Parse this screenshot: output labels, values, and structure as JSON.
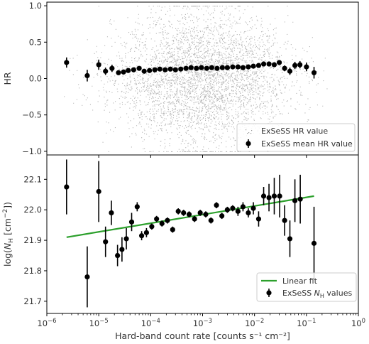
{
  "chart_data": [
    {
      "type": "scatter",
      "panel": "top",
      "xlabel": "",
      "ylabel": "HR",
      "xscale": "log",
      "xlim": [
        1e-06,
        1
      ],
      "ylim": [
        -1.05,
        1.05
      ],
      "yticks": [
        1.0,
        0.5,
        0.0,
        -0.5,
        -1.0
      ],
      "ytick_labels": [
        "1.0",
        "0.5",
        "0.0",
        "−0.5",
        "−1.0"
      ],
      "grid": false,
      "legend_position": "lower-right",
      "series": [
        {
          "name": "ExSeSS HR value",
          "kind": "cloud",
          "color": "#999999",
          "center_log10_x": -3.0,
          "center_hr": 0.0
        },
        {
          "name": "ExSeSS mean HR value",
          "kind": "errorbar",
          "color": "#000000",
          "x": [
            2.4e-06,
            6e-06,
            1e-05,
            1.35e-05,
            1.8e-05,
            2.4e-05,
            3e-05,
            3.7e-05,
            4.7e-05,
            6e-05,
            7.5e-05,
            9.5e-05,
            0.00012,
            0.00015,
            0.00019,
            0.00024,
            0.0003,
            0.00038,
            0.00048,
            0.0006,
            0.00076,
            0.00095,
            0.0012,
            0.0015,
            0.0019,
            0.0024,
            0.003,
            0.0038,
            0.0048,
            0.006,
            0.0076,
            0.0095,
            0.012,
            0.015,
            0.019,
            0.024,
            0.03,
            0.038,
            0.048,
            0.06,
            0.075,
            0.1,
            0.14
          ],
          "y": [
            0.22,
            0.04,
            0.19,
            0.1,
            0.14,
            0.08,
            0.09,
            0.11,
            0.12,
            0.14,
            0.1,
            0.11,
            0.12,
            0.13,
            0.12,
            0.13,
            0.12,
            0.13,
            0.14,
            0.15,
            0.14,
            0.15,
            0.14,
            0.15,
            0.14,
            0.15,
            0.15,
            0.16,
            0.16,
            0.15,
            0.16,
            0.17,
            0.18,
            0.2,
            0.2,
            0.19,
            0.22,
            0.14,
            0.1,
            0.18,
            0.19,
            0.16,
            0.08
          ],
          "yerr": [
            0.07,
            0.08,
            0.07,
            0.05,
            0.05,
            0.03,
            0.03,
            0.02,
            0.02,
            0.02,
            0.02,
            0.02,
            0.02,
            0.02,
            0.02,
            0.02,
            0.02,
            0.02,
            0.02,
            0.02,
            0.02,
            0.02,
            0.02,
            0.02,
            0.02,
            0.02,
            0.02,
            0.02,
            0.02,
            0.02,
            0.02,
            0.02,
            0.02,
            0.02,
            0.03,
            0.03,
            0.03,
            0.04,
            0.05,
            0.05,
            0.05,
            0.06,
            0.08
          ]
        }
      ]
    },
    {
      "type": "scatter",
      "panel": "bottom",
      "xlabel": "Hard-band count rate [counts s⁻¹ cm⁻²]",
      "ylabel_parts": [
        "log(",
        "N",
        "H",
        " [cm",
        "−2",
        "])"
      ],
      "xscale": "log",
      "xlim": [
        1e-06,
        1
      ],
      "ylim": [
        21.66,
        22.18
      ],
      "xticks": [
        1e-06,
        1e-05,
        0.0001,
        0.001,
        0.01,
        0.1,
        1
      ],
      "xtick_labels": [
        {
          "base": "10",
          "exp": "−6"
        },
        {
          "base": "10",
          "exp": "−5"
        },
        {
          "base": "10",
          "exp": "−4"
        },
        {
          "base": "10",
          "exp": "−3"
        },
        {
          "base": "10",
          "exp": "−2"
        },
        {
          "base": "10",
          "exp": "−1"
        },
        {
          "base": "10",
          "exp": "0"
        }
      ],
      "yticks": [
        22.1,
        22.0,
        21.9,
        21.8,
        21.7
      ],
      "ytick_labels": [
        "22.1",
        "22.0",
        "21.9",
        "21.8",
        "21.7"
      ],
      "grid": false,
      "legend_position": "lower-right",
      "series": [
        {
          "name": "Linear fit",
          "kind": "line",
          "color": "#2ca02c",
          "x": [
            2.4e-06,
            0.14
          ],
          "y": [
            21.91,
            22.045
          ]
        },
        {
          "name_parts": [
            "ExSeSS ",
            "N",
            "H",
            " values"
          ],
          "kind": "errorbar",
          "color": "#000000",
          "x": [
            2.4e-06,
            6e-06,
            1e-05,
            1.35e-05,
            1.75e-05,
            2.3e-05,
            2.8e-05,
            3.4e-05,
            4.3e-05,
            5.5e-05,
            6.7e-05,
            8.3e-05,
            0.000105,
            0.00013,
            0.000165,
            0.00021,
            0.000265,
            0.00034,
            0.00043,
            0.00055,
            0.0007,
            0.0009,
            0.00115,
            0.00145,
            0.00185,
            0.00235,
            0.003,
            0.0038,
            0.0048,
            0.006,
            0.0076,
            0.0095,
            0.012,
            0.015,
            0.019,
            0.024,
            0.0305,
            0.038,
            0.048,
            0.06,
            0.076,
            0.14
          ],
          "y": [
            22.075,
            21.78,
            22.06,
            21.895,
            21.99,
            21.85,
            21.87,
            21.905,
            21.96,
            22.01,
            21.915,
            21.925,
            21.945,
            21.97,
            21.955,
            21.965,
            21.935,
            21.995,
            21.99,
            21.985,
            21.97,
            21.99,
            21.985,
            21.965,
            22.015,
            21.98,
            22.0,
            22.005,
            21.995,
            22.01,
            21.99,
            22.005,
            21.97,
            22.045,
            22.04,
            22.045,
            22.045,
            21.965,
            21.905,
            22.03,
            22.035,
            21.89
          ],
          "yerr": [
            0.09,
            0.1,
            0.1,
            0.05,
            0.04,
            0.035,
            0.04,
            0.035,
            0.03,
            0.015,
            0.015,
            0.015,
            0.01,
            0.01,
            0.01,
            0.01,
            0.01,
            0.01,
            0.01,
            0.01,
            0.01,
            0.01,
            0.01,
            0.01,
            0.01,
            0.01,
            0.01,
            0.01,
            0.015,
            0.015,
            0.015,
            0.02,
            0.025,
            0.03,
            0.045,
            0.06,
            0.07,
            0.05,
            0.06,
            0.07,
            0.08,
            0.12
          ]
        }
      ]
    }
  ]
}
